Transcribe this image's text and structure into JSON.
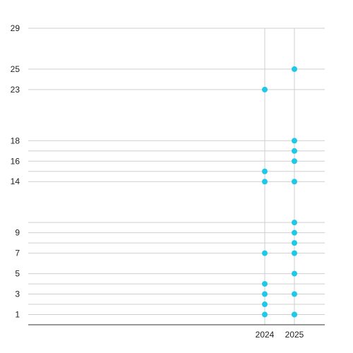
{
  "chart_data": {
    "type": "scatter",
    "title": "",
    "xlabel": "",
    "ylabel": "",
    "x_categories": [
      "2024",
      "2025"
    ],
    "y_ticks": [
      1,
      3,
      5,
      7,
      9,
      14,
      16,
      18,
      23,
      25,
      29
    ],
    "y_gridlines": [
      1,
      2,
      3,
      4,
      5,
      7,
      8,
      9,
      10,
      14,
      15,
      16,
      17,
      18,
      23,
      25,
      29
    ],
    "ylim": [
      0,
      29
    ],
    "grid": true,
    "legend": "none",
    "point_color": "#1ec8e8",
    "series": [
      {
        "x": [
          "2024",
          "2024",
          "2024",
          "2024",
          "2024",
          "2024",
          "2024",
          "2024"
        ],
        "y": [
          1,
          2,
          3,
          4,
          7,
          14,
          15,
          23
        ]
      },
      {
        "x": [
          "2025",
          "2025",
          "2025",
          "2025",
          "2025",
          "2025",
          "2025",
          "2025",
          "2025",
          "2025",
          "2025",
          "2025",
          "2025"
        ],
        "y": [
          1,
          3,
          5,
          7,
          8,
          9,
          10,
          14,
          16,
          17,
          18,
          25,
          1
        ]
      }
    ]
  }
}
